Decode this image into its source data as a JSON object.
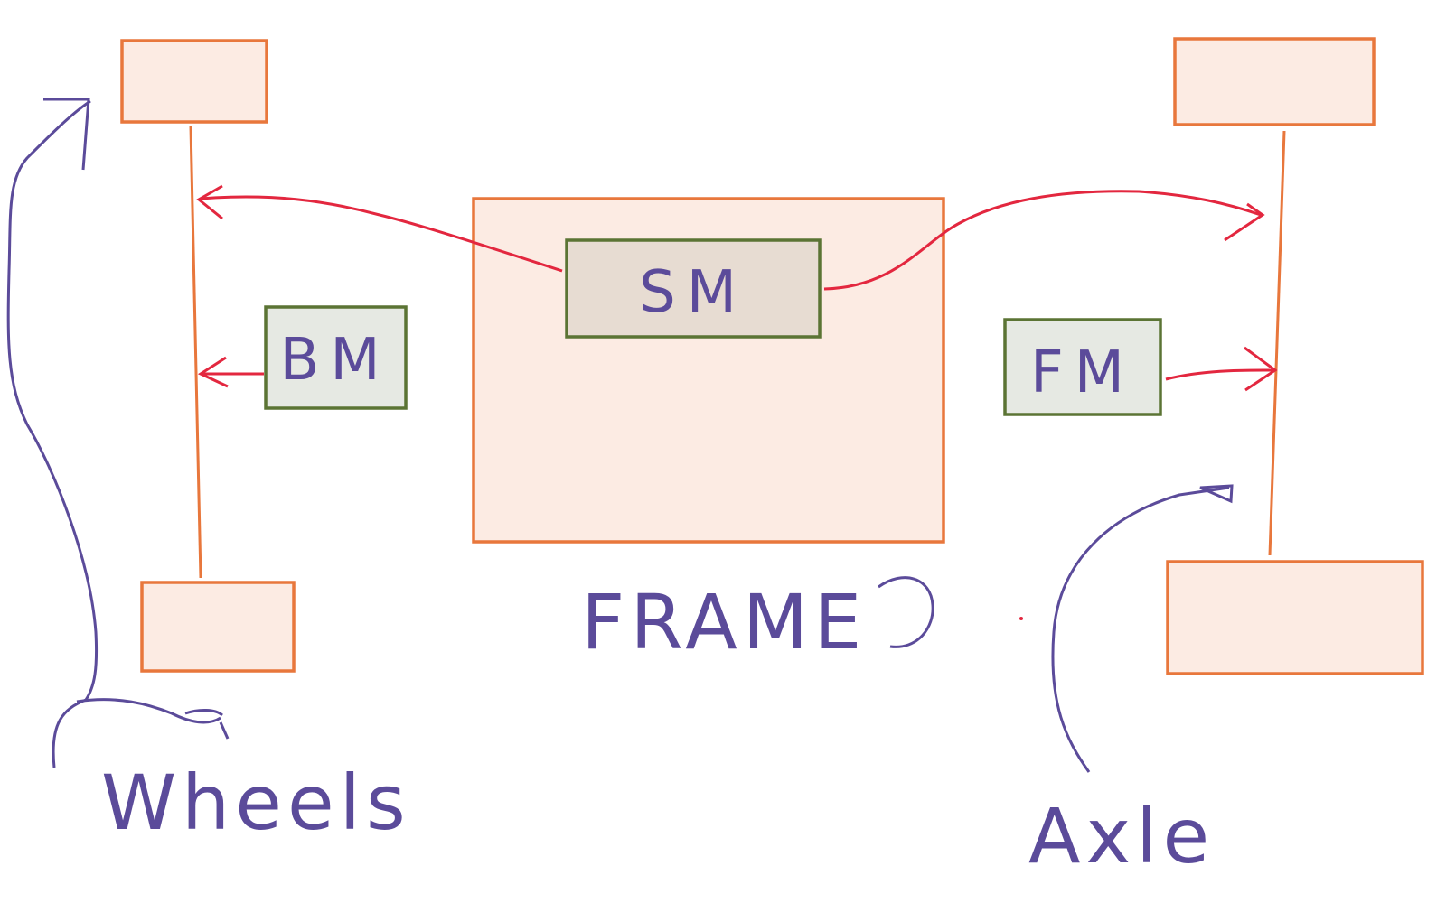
{
  "labels": {
    "sm": "SM",
    "bm": "BM",
    "fm": "FM",
    "frame": "FRAME",
    "wheels": "Wheels",
    "axle": "Axle"
  },
  "colors": {
    "frame_stroke": "#e8773c",
    "frame_fill": "#fcebe3",
    "module_stroke": "#5b7434",
    "module_fill": "#e6e9e3",
    "sm_fill": "#e7dcd2",
    "arrow": "#e3273f",
    "annotation": "#5b4b9a"
  }
}
